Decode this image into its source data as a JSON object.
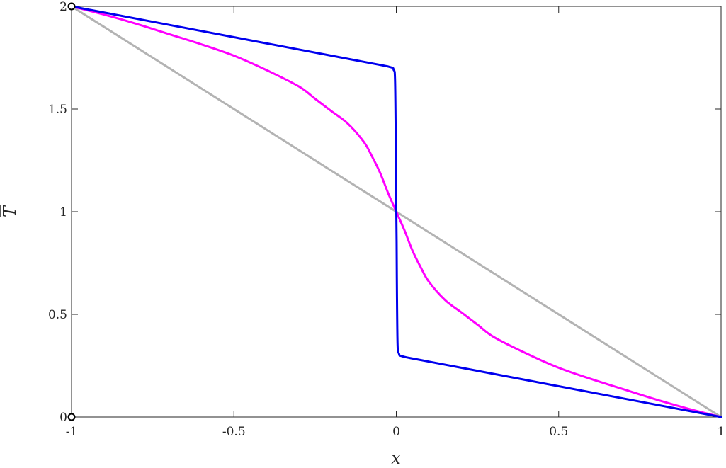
{
  "chart_data": {
    "type": "line",
    "title": "",
    "xlabel": "x",
    "ylabel": "T",
    "ylabel_overbar": true,
    "xlim": [
      -1,
      1
    ],
    "ylim": [
      0,
      2
    ],
    "x_ticks": [
      -1,
      -0.5,
      0,
      0.5,
      1
    ],
    "x_tick_labels": [
      "-1",
      "-0.5",
      "0",
      "0.5",
      "1"
    ],
    "y_ticks": [
      0,
      0.5,
      1,
      1.5,
      2
    ],
    "y_tick_labels": [
      "0",
      "0.5",
      "1",
      "1.5",
      "2"
    ],
    "grid": false,
    "legend": "none",
    "series": [
      {
        "color": "#b3b3b3",
        "x": [
          -1,
          1
        ],
        "y": [
          2,
          0
        ]
      },
      {
        "color": "#ff00ff",
        "x": [
          -1,
          -0.9,
          -0.8,
          -0.7,
          -0.6,
          -0.5,
          -0.4,
          -0.3,
          -0.25,
          -0.2,
          -0.15,
          -0.1,
          -0.075,
          -0.05,
          -0.025,
          0,
          0.025,
          0.05,
          0.075,
          0.1,
          0.15,
          0.2,
          0.25,
          0.3,
          0.4,
          0.5,
          0.6,
          0.7,
          0.8,
          0.9,
          1
        ],
        "y": [
          2,
          1.96,
          1.915,
          1.865,
          1.815,
          1.76,
          1.69,
          1.61,
          1.55,
          1.49,
          1.43,
          1.34,
          1.27,
          1.19,
          1.09,
          1.0,
          0.91,
          0.81,
          0.73,
          0.66,
          0.57,
          0.51,
          0.45,
          0.39,
          0.31,
          0.24,
          0.185,
          0.135,
          0.085,
          0.04,
          0
        ]
      },
      {
        "color": "#0000ee",
        "x": [
          -1,
          -0.5,
          -0.1,
          -0.02,
          -0.008,
          -0.004,
          -0.002,
          -0.001,
          0,
          0.001,
          0.002,
          0.004,
          0.008,
          0.02,
          0.1,
          0.5,
          1
        ],
        "y": [
          2,
          1.85,
          1.73,
          1.705,
          1.69,
          1.65,
          1.4,
          1.15,
          1.0,
          0.85,
          0.6,
          0.35,
          0.31,
          0.295,
          0.27,
          0.15,
          0
        ]
      }
    ],
    "markers": [
      {
        "x": -1,
        "y": 2
      },
      {
        "x": -1,
        "y": 0
      }
    ]
  }
}
